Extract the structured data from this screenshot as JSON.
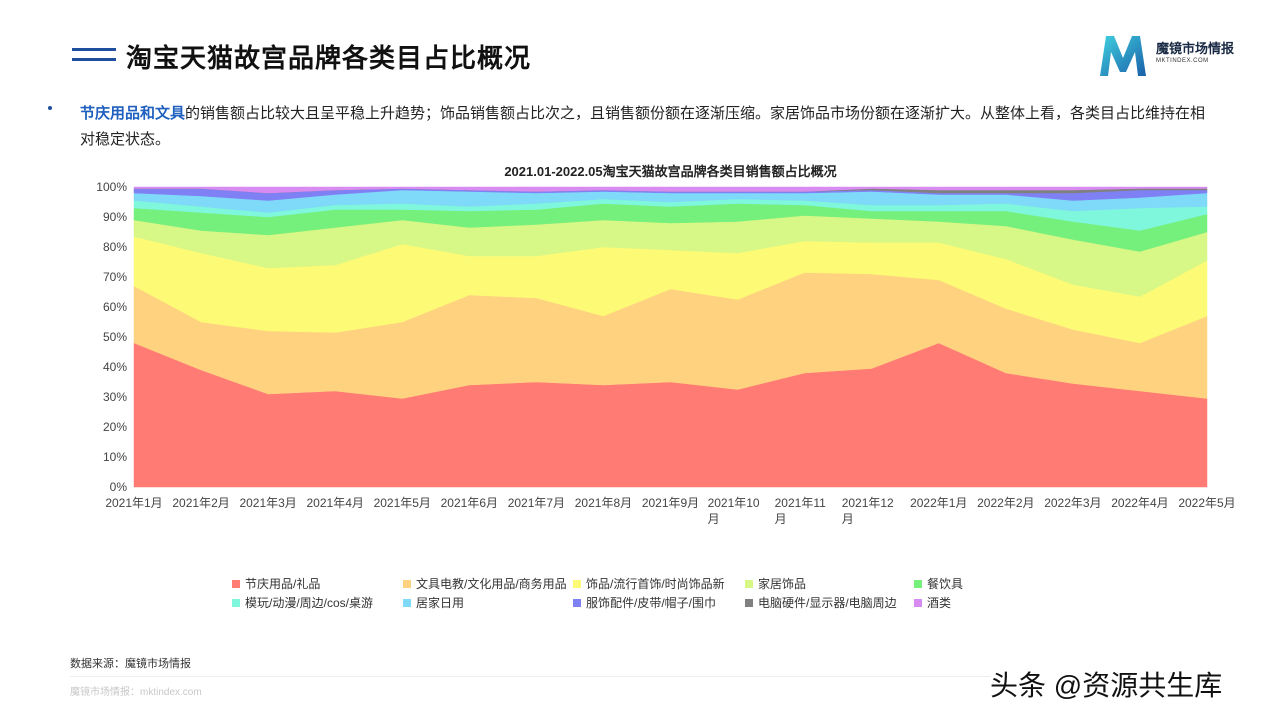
{
  "page": {
    "title": "淘宝天猫故宫品牌各类目占比概况",
    "logo_cn": "魔镜市场情报",
    "logo_en": "MKTINDEX.COM",
    "desc_highlight": "节庆用品和文具",
    "desc_text": "的销售额占比较大且呈平稳上升趋势；饰品销售额占比次之，且销售额份额在逐渐压缩。家居饰品市场份额在逐渐扩大。从整体上看，各类目占比维持在相对稳定状态。",
    "source": "数据来源：魔镜市场情报",
    "footer": "魔镜市场情报：mktindex.com",
    "watermark": "头条 @资源共生库"
  },
  "colors": {
    "title_bar": "#1f4e9e",
    "highlight": "#1f5fbf"
  },
  "chart_data": {
    "type": "area",
    "stacked": true,
    "percent": true,
    "title": "2021.01-2022.05淘宝天猫故宫品牌各类目销售额占比概况",
    "categories": [
      "2021年1月",
      "2021年2月",
      "2021年3月",
      "2021年4月",
      "2021年5月",
      "2021年6月",
      "2021年7月",
      "2021年8月",
      "2021年9月",
      "2021年10月",
      "2021年11月",
      "2021年12月",
      "2022年1月",
      "2022年2月",
      "2022年3月",
      "2022年4月",
      "2022年5月"
    ],
    "y_ticks": [
      "0%",
      "10%",
      "20%",
      "30%",
      "40%",
      "50%",
      "60%",
      "70%",
      "80%",
      "90%",
      "100%"
    ],
    "ylim": [
      0,
      100
    ],
    "grid": false,
    "legend_position": "bottom",
    "series": [
      {
        "name": "节庆用品/礼品",
        "color": "#ff7b74",
        "values": [
          48,
          39,
          31,
          32,
          29.5,
          34,
          35,
          34,
          35,
          32.5,
          38,
          39.5,
          48,
          38,
          34.5,
          32,
          29.5
        ]
      },
      {
        "name": "文具电教/文化用品/商务用品",
        "color": "#ffd280",
        "values": [
          19,
          16,
          21,
          19.5,
          25.5,
          30,
          28,
          23,
          31,
          30,
          33.5,
          31.5,
          21,
          21.5,
          18,
          16,
          27.5
        ]
      },
      {
        "name": "饰品/流行首饰/时尚饰品新",
        "color": "#fdfa76",
        "values": [
          16.5,
          23,
          21,
          22.5,
          26,
          13,
          14,
          23,
          13,
          15.5,
          10.5,
          10.5,
          12.5,
          16.5,
          15,
          15.5,
          18.5
        ]
      },
      {
        "name": "家居饰品",
        "color": "#d7f786",
        "values": [
          5.5,
          7.5,
          11,
          12.5,
          8,
          9.5,
          10.5,
          9,
          9,
          10.5,
          8.5,
          8,
          7,
          11,
          15,
          15,
          9.5
        ]
      },
      {
        "name": "餐饮具",
        "color": "#76f07c",
        "values": [
          4,
          6,
          6,
          6,
          3.5,
          5.5,
          5,
          5.5,
          5.5,
          6,
          3.5,
          2.5,
          3.5,
          5,
          6,
          7,
          6
        ]
      },
      {
        "name": "模玩/动漫/周边/cos/桌游",
        "color": "#7ff7dc",
        "values": [
          2.5,
          2,
          1.5,
          1.5,
          2,
          1.5,
          2,
          1.5,
          1.5,
          1.5,
          1.5,
          2,
          2,
          2.5,
          3.5,
          7.5,
          2.5
        ]
      },
      {
        "name": "居家日用",
        "color": "#7fd9f8",
        "values": [
          2.5,
          3.5,
          4,
          3.5,
          4.5,
          5,
          3.5,
          2.5,
          3,
          2,
          2.5,
          4.5,
          3.5,
          3,
          3.5,
          3.5,
          4.5
        ]
      },
      {
        "name": "服饰配件/皮带/帽子/围巾",
        "color": "#8080f5",
        "values": [
          1.5,
          2.5,
          2.5,
          1.5,
          0.5,
          0.5,
          0.5,
          0.5,
          0.5,
          0.5,
          0.5,
          0.5,
          0.5,
          0.5,
          2.5,
          2.5,
          1
        ]
      },
      {
        "name": "电脑硬件/显示器/电脑周边",
        "color": "#808080",
        "values": [
          0,
          0,
          0,
          0,
          0,
          0,
          0,
          0,
          0,
          0,
          0,
          0.5,
          1,
          1,
          1,
          0.5,
          0.5
        ]
      },
      {
        "name": "酒类",
        "color": "#d88cf2",
        "values": [
          0.5,
          0.5,
          2,
          1,
          0.5,
          1,
          1.5,
          1,
          1.5,
          1.5,
          1.5,
          0.5,
          1,
          1,
          1,
          0.5,
          0.5
        ]
      }
    ]
  }
}
